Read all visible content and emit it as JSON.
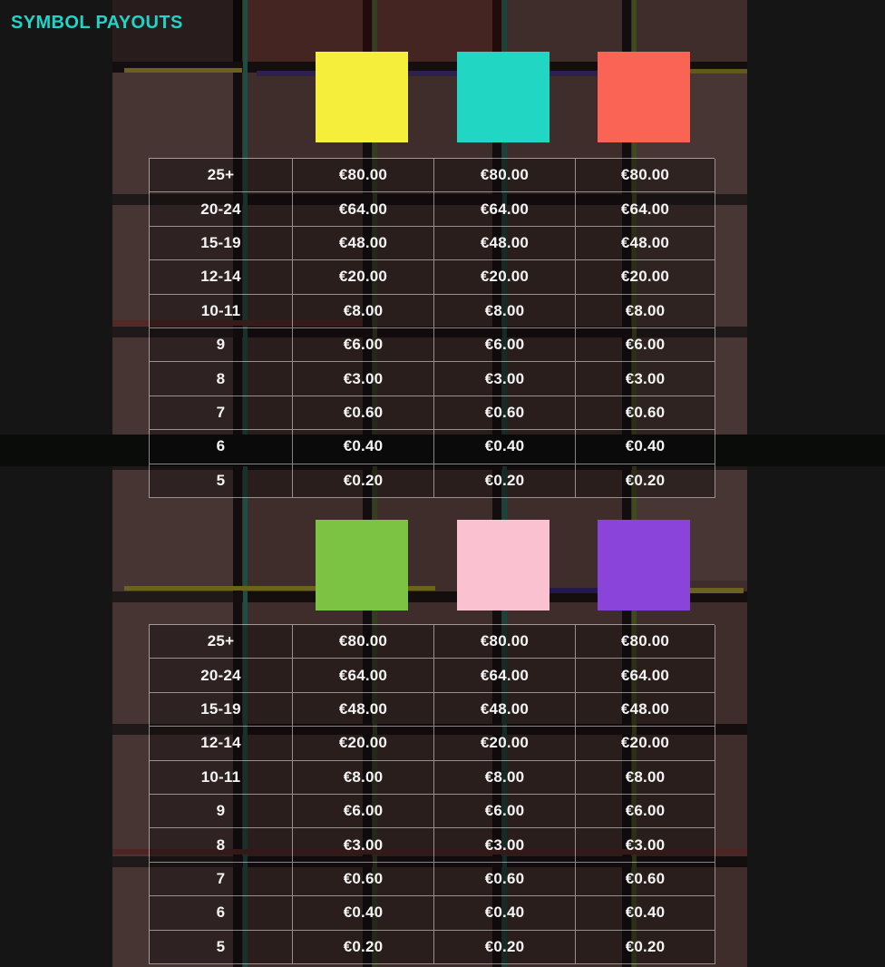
{
  "title": "SYMBOL PAYOUTS",
  "accent_color": "#1fd5c9",
  "symbol_groups": [
    {
      "symbols": [
        {
          "name": "yellow-square",
          "color": "#f5ee3b"
        },
        {
          "name": "teal-square",
          "color": "#21d6c3"
        },
        {
          "name": "coral-square",
          "color": "#fa6455"
        }
      ],
      "rows": [
        {
          "count": "25+",
          "payouts": [
            "€80.00",
            "€80.00",
            "€80.00"
          ]
        },
        {
          "count": "20-24",
          "payouts": [
            "€64.00",
            "€64.00",
            "€64.00"
          ]
        },
        {
          "count": "15-19",
          "payouts": [
            "€48.00",
            "€48.00",
            "€48.00"
          ]
        },
        {
          "count": "12-14",
          "payouts": [
            "€20.00",
            "€20.00",
            "€20.00"
          ]
        },
        {
          "count": "10-11",
          "payouts": [
            "€8.00",
            "€8.00",
            "€8.00"
          ]
        },
        {
          "count": "9",
          "payouts": [
            "€6.00",
            "€6.00",
            "€6.00"
          ]
        },
        {
          "count": "8",
          "payouts": [
            "€3.00",
            "€3.00",
            "€3.00"
          ]
        },
        {
          "count": "7",
          "payouts": [
            "€0.60",
            "€0.60",
            "€0.60"
          ]
        },
        {
          "count": "6",
          "payouts": [
            "€0.40",
            "€0.40",
            "€0.40"
          ]
        },
        {
          "count": "5",
          "payouts": [
            "€0.20",
            "€0.20",
            "€0.20"
          ]
        }
      ]
    },
    {
      "symbols": [
        {
          "name": "green-square",
          "color": "#7cc344"
        },
        {
          "name": "pink-square",
          "color": "#fac1d0"
        },
        {
          "name": "purple-square",
          "color": "#8a44da"
        }
      ],
      "rows": [
        {
          "count": "25+",
          "payouts": [
            "€80.00",
            "€80.00",
            "€80.00"
          ]
        },
        {
          "count": "20-24",
          "payouts": [
            "€64.00",
            "€64.00",
            "€64.00"
          ]
        },
        {
          "count": "15-19",
          "payouts": [
            "€48.00",
            "€48.00",
            "€48.00"
          ]
        },
        {
          "count": "12-14",
          "payouts": [
            "€20.00",
            "€20.00",
            "€20.00"
          ]
        },
        {
          "count": "10-11",
          "payouts": [
            "€8.00",
            "€8.00",
            "€8.00"
          ]
        },
        {
          "count": "9",
          "payouts": [
            "€6.00",
            "€6.00",
            "€6.00"
          ]
        },
        {
          "count": "8",
          "payouts": [
            "€3.00",
            "€3.00",
            "€3.00"
          ]
        },
        {
          "count": "7",
          "payouts": [
            "€0.60",
            "€0.60",
            "€0.60"
          ]
        },
        {
          "count": "6",
          "payouts": [
            "€0.40",
            "€0.40",
            "€0.40"
          ]
        },
        {
          "count": "5",
          "payouts": [
            "€0.20",
            "€0.20",
            "€0.20"
          ]
        }
      ]
    }
  ]
}
